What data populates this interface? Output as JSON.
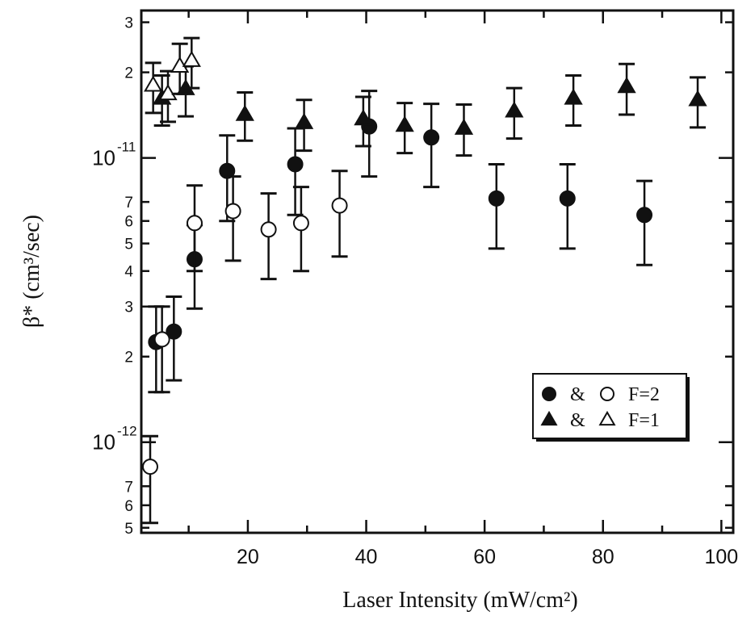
{
  "chart_data": {
    "type": "scatter",
    "title": "",
    "xlabel": "Laser Intensity (mW/cm²)",
    "ylabel": "β* (cm³/sec)",
    "x_axis": {
      "range": [
        2,
        102
      ],
      "scale": "linear",
      "major_ticks": [
        20,
        40,
        60,
        80,
        100
      ],
      "tick_labels": [
        "20",
        "40",
        "60",
        "80",
        "100"
      ]
    },
    "y_axis": {
      "range": [
        4.8e-13,
        3.3e-11
      ],
      "scale": "log",
      "decade_ticks": [
        1e-12,
        1e-11
      ],
      "decade_labels": [
        "10",
        "10"
      ],
      "decade_exponents": [
        "-12",
        "-11"
      ],
      "minor_ticks": [
        5e-13,
        6e-13,
        7e-13,
        2e-12,
        3e-12,
        4e-12,
        5e-12,
        6e-12,
        7e-12,
        2e-11,
        3e-11
      ],
      "minor_labels": [
        "5",
        "6",
        "7",
        "2",
        "3",
        "4",
        "5",
        "6",
        "7",
        "2",
        "3"
      ]
    },
    "grid": false,
    "legend": {
      "position": "lower-right",
      "entries": [
        {
          "markers": [
            "filled-circle",
            "open-circle"
          ],
          "joiner": "&",
          "label": "F=2"
        },
        {
          "markers": [
            "filled-triangle",
            "open-triangle"
          ],
          "joiner": "&",
          "label": "F=1"
        }
      ]
    },
    "series": [
      {
        "marker": "filled-circle",
        "points": [
          {
            "x": 4.5,
            "y": 2.25e-12,
            "lo": 1.5e-12,
            "hi": 3e-12
          },
          {
            "x": 7.5,
            "y": 2.45e-12,
            "lo": 1.65e-12,
            "hi": 3.25e-12
          },
          {
            "x": 11,
            "y": 4.4e-12,
            "lo": 2.95e-12,
            "hi": 5.8e-12
          },
          {
            "x": 16.5,
            "y": 9e-12,
            "lo": 6e-12,
            "hi": 1.2e-11
          },
          {
            "x": 28,
            "y": 9.5e-12,
            "lo": 6.3e-12,
            "hi": 1.27e-11
          },
          {
            "x": 40.5,
            "y": 1.29e-11,
            "lo": 8.6e-12,
            "hi": 1.72e-11
          },
          {
            "x": 51,
            "y": 1.18e-11,
            "lo": 7.9e-12,
            "hi": 1.55e-11
          },
          {
            "x": 62,
            "y": 7.2e-12,
            "lo": 4.8e-12,
            "hi": 9.5e-12
          },
          {
            "x": 74,
            "y": 7.2e-12,
            "lo": 4.8e-12,
            "hi": 9.5e-12
          },
          {
            "x": 87,
            "y": 6.3e-12,
            "lo": 4.2e-12,
            "hi": 8.3e-12
          }
        ]
      },
      {
        "marker": "open-circle",
        "points": [
          {
            "x": 3.5,
            "y": 8.2e-13,
            "lo": 5.2e-13,
            "hi": 1.05e-12
          },
          {
            "x": 5.5,
            "y": 2.3e-12,
            "lo": 1.5e-12,
            "hi": 3e-12
          },
          {
            "x": 11,
            "y": 5.9e-12,
            "lo": 4e-12,
            "hi": 8e-12
          },
          {
            "x": 17.5,
            "y": 6.5e-12,
            "lo": 4.35e-12,
            "hi": 8.6e-12
          },
          {
            "x": 23.5,
            "y": 5.6e-12,
            "lo": 3.75e-12,
            "hi": 7.5e-12
          },
          {
            "x": 29,
            "y": 5.9e-12,
            "lo": 4e-12,
            "hi": 7.9e-12
          },
          {
            "x": 35.5,
            "y": 6.8e-12,
            "lo": 4.5e-12,
            "hi": 9e-12
          }
        ]
      },
      {
        "marker": "filled-triangle",
        "points": [
          {
            "x": 5.5,
            "y": 1.62e-11,
            "lo": 1.3e-11,
            "hi": 1.95e-11
          },
          {
            "x": 9.5,
            "y": 1.75e-11,
            "lo": 1.4e-11,
            "hi": 2.1e-11
          },
          {
            "x": 19.5,
            "y": 1.42e-11,
            "lo": 1.15e-11,
            "hi": 1.7e-11
          },
          {
            "x": 29.5,
            "y": 1.33e-11,
            "lo": 1.06e-11,
            "hi": 1.6e-11
          },
          {
            "x": 39.5,
            "y": 1.37e-11,
            "lo": 1.1e-11,
            "hi": 1.64e-11
          },
          {
            "x": 46.5,
            "y": 1.3e-11,
            "lo": 1.04e-11,
            "hi": 1.56e-11
          },
          {
            "x": 56.5,
            "y": 1.27e-11,
            "lo": 1.02e-11,
            "hi": 1.54e-11
          },
          {
            "x": 65,
            "y": 1.46e-11,
            "lo": 1.17e-11,
            "hi": 1.76e-11
          },
          {
            "x": 75,
            "y": 1.62e-11,
            "lo": 1.3e-11,
            "hi": 1.95e-11
          },
          {
            "x": 84,
            "y": 1.78e-11,
            "lo": 1.42e-11,
            "hi": 2.14e-11
          },
          {
            "x": 96,
            "y": 1.6e-11,
            "lo": 1.28e-11,
            "hi": 1.92e-11
          }
        ]
      },
      {
        "marker": "open-triangle",
        "points": [
          {
            "x": 4,
            "y": 1.8e-11,
            "lo": 1.44e-11,
            "hi": 2.16e-11
          },
          {
            "x": 6.5,
            "y": 1.68e-11,
            "lo": 1.34e-11,
            "hi": 2.02e-11
          },
          {
            "x": 8.5,
            "y": 2.1e-11,
            "lo": 1.68e-11,
            "hi": 2.52e-11
          },
          {
            "x": 10.5,
            "y": 2.2e-11,
            "lo": 1.76e-11,
            "hi": 2.64e-11
          }
        ]
      }
    ]
  }
}
